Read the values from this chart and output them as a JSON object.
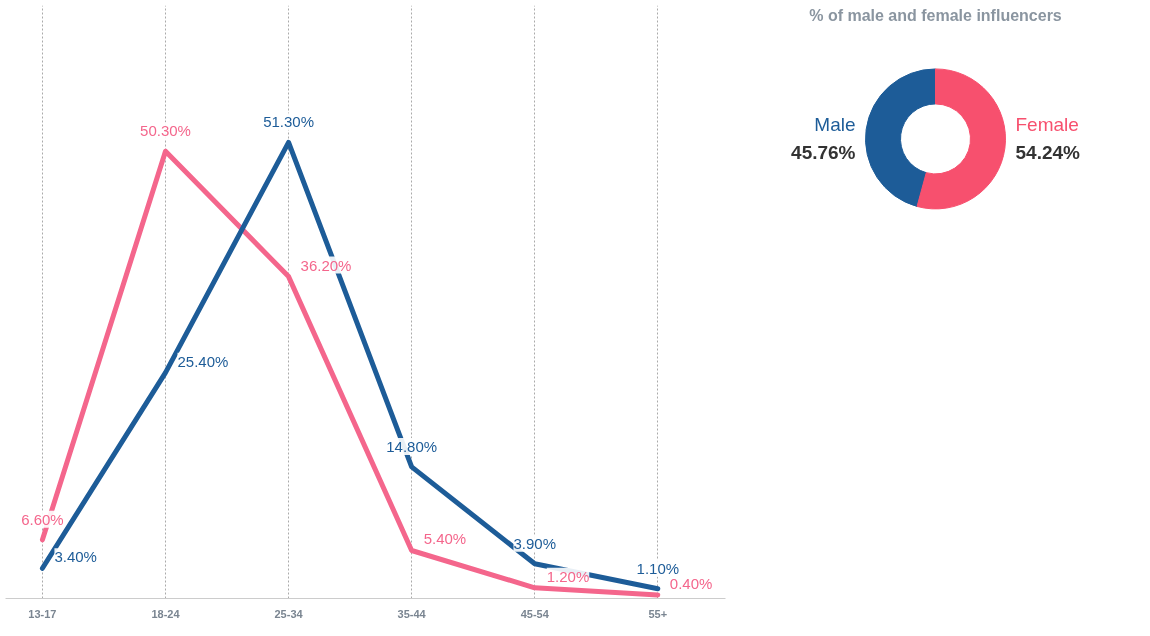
{
  "chart_data": [
    {
      "type": "line",
      "categories": [
        "13-17",
        "18-24",
        "25-34",
        "35-44",
        "45-54",
        "55+"
      ],
      "series": [
        {
          "color": "#f4668c",
          "values": [
            6.6,
            50.3,
            36.2,
            5.4,
            1.2,
            0.4
          ],
          "value_labels": [
            "6.60%",
            "50.30%",
            "36.20%",
            "5.40%",
            "1.20%",
            "0.40%"
          ]
        },
        {
          "color": "#1d5c98",
          "values": [
            3.4,
            25.4,
            51.3,
            14.8,
            3.9,
            1.1
          ],
          "value_labels": [
            "3.40%",
            "25.40%",
            "51.30%",
            "14.80%",
            "3.90%",
            "1.10%"
          ]
        }
      ],
      "grid": "x",
      "tick_labels": "x"
    },
    {
      "type": "donut",
      "title": "% of male and female influencers",
      "categories": [
        "Male",
        "Female"
      ],
      "values": [
        45.76,
        54.24
      ],
      "colors": [
        "#1d5c98",
        "#f7506e"
      ],
      "value_labels": [
        "45.76%",
        "54.24%"
      ]
    }
  ]
}
